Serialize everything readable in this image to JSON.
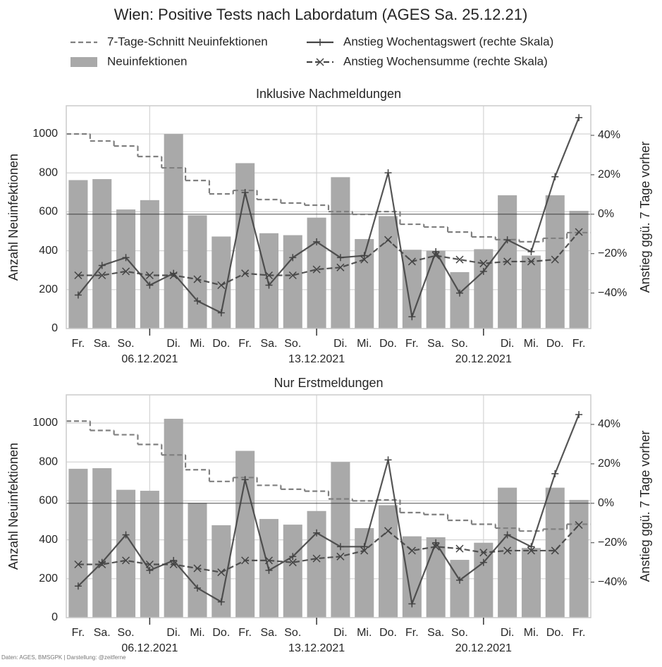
{
  "figure": {
    "title": "Wien: Positive Tests nach Labordatum (AGES Sa. 25.12.21)",
    "source": "Daten: AGES, BMSGPK | Darstellung: @zeitferne"
  },
  "chart_data": [
    {
      "type": "combo",
      "title": "Inklusive Nachmeldungen",
      "ylabel": "Anzahl Neuinfektionen",
      "y2label": "Anstieg ggü. 7 Tage vorher",
      "categories": [
        "Fr.",
        "Sa.",
        "So.",
        null,
        "Di.",
        "Mi.",
        "Do.",
        "Fr.",
        "Sa.",
        "So.",
        null,
        "Di.",
        "Mi.",
        "Do.",
        "Fr.",
        "Sa.",
        "So.",
        null,
        "Di.",
        "Mi.",
        "Do.",
        "Fr."
      ],
      "date_labels": [
        null,
        null,
        null,
        "06.12.2021",
        null,
        null,
        null,
        null,
        null,
        null,
        "13.12.2021",
        null,
        null,
        null,
        null,
        null,
        null,
        "20.12.2021",
        null,
        null,
        null,
        null
      ],
      "ylim": [
        0,
        1145
      ],
      "yticks": [
        0,
        200,
        400,
        600,
        800,
        1000
      ],
      "y2lim": [
        -58,
        55
      ],
      "y2ticks": [
        {
          "value": -40,
          "label": "−40%"
        },
        {
          "value": -20,
          "label": "−20%"
        },
        {
          "value": 0,
          "label": "0%"
        },
        {
          "value": 20,
          "label": "20%"
        },
        {
          "value": 40,
          "label": "40%"
        }
      ],
      "y2_hline": 0,
      "grid": true,
      "series": [
        {
          "name": "7-Tage-Schnitt Neuinfektionen",
          "kind": "step",
          "color": "#808080",
          "values": [
            1000,
            964,
            938,
            884,
            826,
            761,
            692,
            710,
            663,
            645,
            634,
            601,
            587,
            601,
            536,
            522,
            496,
            471,
            457,
            446,
            464,
            493
          ]
        },
        {
          "name": "Neuinfektionen",
          "kind": "bar",
          "color": "#a9a9a9",
          "values": [
            763,
            768,
            612,
            660,
            1000,
            582,
            473,
            850,
            490,
            480,
            570,
            778,
            460,
            578,
            405,
            400,
            290,
            408,
            685,
            375,
            685,
            605
          ]
        },
        {
          "name": "Anstieg Wochentagswert (rechte Skala)",
          "kind": "line",
          "marker": "plus",
          "color": "#444444",
          "axis": "y2",
          "values": [
            -41,
            -26,
            -22,
            -36,
            -30,
            -44,
            -50,
            11,
            -36,
            -22,
            -14,
            -22,
            -21,
            21,
            -52,
            -19,
            -40,
            -29,
            -13,
            -19,
            19,
            49
          ]
        },
        {
          "name": "Anstieg Wochensumme (rechte Skala)",
          "kind": "line",
          "marker": "x",
          "dashed": true,
          "color": "#444444",
          "axis": "y2",
          "values": [
            -31,
            -31,
            -29,
            -31,
            -31,
            -33,
            -36,
            -30,
            -31,
            -31,
            -28,
            -27,
            -23,
            -13,
            -24,
            -21,
            -23,
            -25,
            -24,
            -24,
            -23,
            -9
          ]
        }
      ]
    },
    {
      "type": "combo",
      "title": "Nur Erstmeldungen",
      "ylabel": "Anzahl Neuinfektionen",
      "y2label": "Anstieg ggü. 7 Tage vorher",
      "categories": [
        "Fr.",
        "Sa.",
        "So.",
        null,
        "Di.",
        "Mi.",
        "Do.",
        "Fr.",
        "Sa.",
        "So.",
        null,
        "Di.",
        "Mi.",
        "Do.",
        "Fr.",
        "Sa.",
        "So.",
        null,
        "Di.",
        "Mi.",
        "Do.",
        "Fr."
      ],
      "date_labels": [
        null,
        null,
        null,
        "06.12.2021",
        null,
        null,
        null,
        null,
        null,
        null,
        "13.12.2021",
        null,
        null,
        null,
        null,
        null,
        null,
        "20.12.2021",
        null,
        null,
        null,
        null
      ],
      "ylim": [
        0,
        1145
      ],
      "yticks": [
        0,
        200,
        400,
        600,
        800,
        1000
      ],
      "y2lim": [
        -58,
        55
      ],
      "y2ticks": [
        {
          "value": -40,
          "label": "−40%"
        },
        {
          "value": -20,
          "label": "−20%"
        },
        {
          "value": 0,
          "label": "0%"
        },
        {
          "value": 20,
          "label": "20%"
        },
        {
          "value": 40,
          "label": "40%"
        }
      ],
      "y2_hline": 0,
      "grid": true,
      "series": [
        {
          "kind": "step",
          "color": "#808080",
          "values": [
            1010,
            962,
            940,
            890,
            836,
            760,
            700,
            720,
            680,
            660,
            650,
            610,
            600,
            605,
            540,
            530,
            500,
            480,
            460,
            445,
            455,
            480
          ]
        },
        {
          "kind": "bar",
          "color": "#a9a9a9",
          "values": [
            765,
            768,
            657,
            652,
            1022,
            590,
            475,
            857,
            507,
            478,
            548,
            800,
            460,
            578,
            418,
            413,
            297,
            385,
            668,
            358,
            668,
            605
          ]
        },
        {
          "kind": "line",
          "marker": "plus",
          "color": "#444444",
          "axis": "y2",
          "values": [
            -42,
            -30,
            -16,
            -34,
            -29,
            -43,
            -50,
            12,
            -34,
            -27,
            -15,
            -22,
            -22,
            22,
            -51,
            -20,
            -39,
            -30,
            -16,
            -22,
            15,
            45
          ]
        },
        {
          "kind": "line",
          "marker": "x",
          "dashed": true,
          "color": "#444444",
          "axis": "y2",
          "values": [
            -31,
            -31,
            -29,
            -31,
            -31,
            -33,
            -35,
            -29,
            -29,
            -30,
            -28,
            -27,
            -24,
            -14,
            -24,
            -22,
            -23,
            -25,
            -24,
            -24,
            -24,
            -11
          ]
        }
      ]
    }
  ]
}
